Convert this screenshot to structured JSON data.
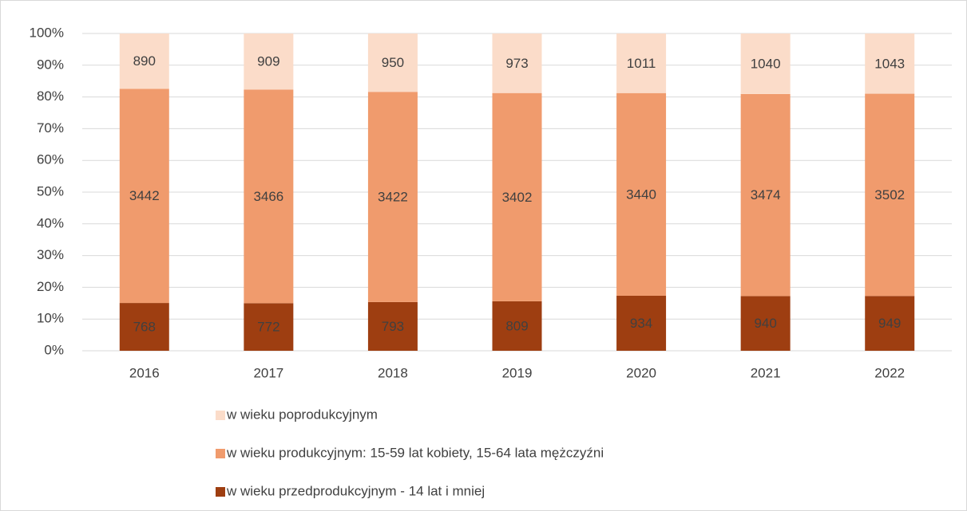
{
  "chart_data": {
    "type": "bar",
    "stacking": "percent",
    "categories": [
      "2016",
      "2017",
      "2018",
      "2019",
      "2020",
      "2021",
      "2022"
    ],
    "series": [
      {
        "name": "w wieku poprodukcyjnym",
        "color": "#fbdcc9",
        "values": [
          890,
          909,
          950,
          973,
          1011,
          1040,
          1043
        ]
      },
      {
        "name": "w wieku produkcyjnym: 15-59 lat kobiety, 15-64 lata mężczyźni",
        "color": "#f09b6d",
        "values": [
          3442,
          3466,
          3422,
          3402,
          3440,
          3474,
          3502
        ]
      },
      {
        "name": "w wieku przedprodukcyjnym - 14 lat i mniej",
        "color": "#9e3e11",
        "values": [
          768,
          772,
          793,
          809,
          934,
          940,
          949
        ]
      }
    ],
    "ylim": [
      0,
      100
    ],
    "yticks": [
      {
        "value": 0,
        "label": "0%"
      },
      {
        "value": 10,
        "label": "10%"
      },
      {
        "value": 20,
        "label": "20%"
      },
      {
        "value": 30,
        "label": "30%"
      },
      {
        "value": 40,
        "label": "40%"
      },
      {
        "value": 50,
        "label": "50%"
      },
      {
        "value": 60,
        "label": "60%"
      },
      {
        "value": 70,
        "label": "70%"
      },
      {
        "value": 80,
        "label": "80%"
      },
      {
        "value": 90,
        "label": "90%"
      },
      {
        "value": 100,
        "label": "100%"
      }
    ],
    "grid": true
  }
}
